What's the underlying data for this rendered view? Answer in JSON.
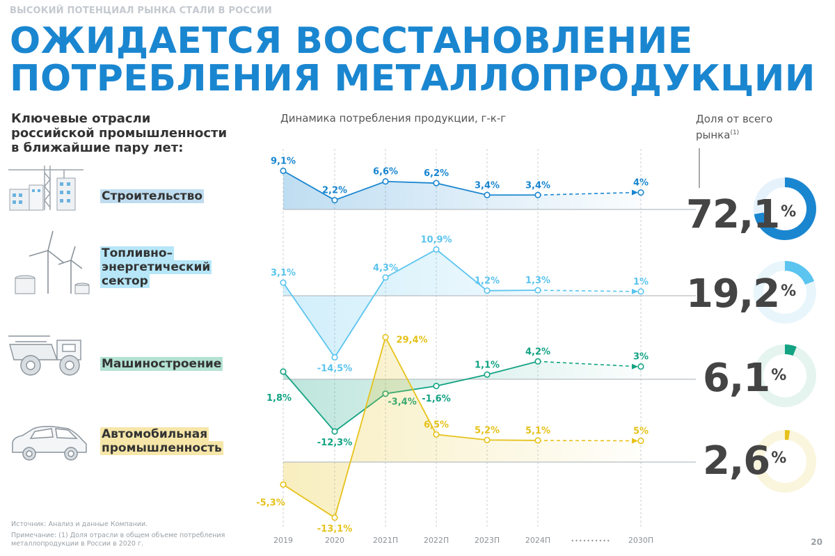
{
  "header": {
    "kicker": "ВЫСОКИЙ ПОТЕНЦИАЛ РЫНКА СТАЛИ В РОССИИ",
    "title_line1": "ОЖИДАЕТСЯ ВОССТАНОВЛЕНИЕ",
    "title_line2": "ПОТРЕБЛЕНИЯ МЕТАЛЛОПРОДУКЦИИ"
  },
  "left_heading": [
    "Ключевые отрасли",
    "российской промышленности",
    "в ближайшие пару лет:"
  ],
  "chart_heading": "Динамика потребления продукции, г-к-г",
  "share_heading": {
    "line1": "Доля от всего",
    "line2": "рынка",
    "note": "(1)"
  },
  "sectors": [
    {
      "label_lines": [
        "Строительство"
      ],
      "share": "72,1",
      "share_pct": "%",
      "color": "#1a86d0",
      "label_bg": "#bfdcef",
      "ring_bg": "#e6f2fb",
      "icon": "construction-icon"
    },
    {
      "label_lines": [
        "Топливно–",
        "энергетический",
        "сектор"
      ],
      "share": "19,2",
      "share_pct": "%",
      "color": "#5bc4ef",
      "label_bg": "#b6e6f7",
      "ring_bg": "#e8f6fc",
      "icon": "wind-turbine-icon"
    },
    {
      "label_lines": [
        "Машиностроение"
      ],
      "share": "6,1",
      "share_pct": "%",
      "color": "#13a383",
      "label_bg": "#b3e2d2",
      "ring_bg": "#e5f4ee",
      "icon": "dump-truck-icon"
    },
    {
      "label_lines": [
        "Автомобильная",
        "промышленность"
      ],
      "share": "2,6",
      "share_pct": "%",
      "color": "#e6c21a",
      "label_bg": "#f6e6a8",
      "ring_bg": "#faf5dd",
      "icon": "car-icon"
    }
  ],
  "chart_data": {
    "type": "line",
    "x": [
      "2019",
      "2020",
      "2021П",
      "2022П",
      "2023П",
      "2024П",
      "2030П"
    ],
    "xlabel": "",
    "ylabel": "Динамика потребления продукции, г-к-г",
    "unit": "%",
    "series": [
      {
        "name": "Строительство",
        "values": [
          9.1,
          2.2,
          6.6,
          6.2,
          3.4,
          3.4,
          4
        ],
        "labels": [
          "9,1%",
          "2,2%",
          "6,6%",
          "6,2%",
          "3,4%",
          "3,4%",
          "4%"
        ],
        "market_share": 72.1
      },
      {
        "name": "Топливно–энергетический сектор",
        "values": [
          3.1,
          -14.5,
          4.3,
          10.9,
          1.2,
          1.3,
          1
        ],
        "labels": [
          "3,1%",
          "-14,5%",
          "4,3%",
          "10,9%",
          "1,2%",
          "1,3%",
          "1%"
        ],
        "market_share": 19.2
      },
      {
        "name": "Машиностроение",
        "values": [
          1.8,
          -12.3,
          -3.4,
          -1.6,
          1.1,
          4.2,
          3
        ],
        "labels": [
          "1,8%",
          "-12,3%",
          "-3,4%",
          "-1,6%",
          "1,1%",
          "4,2%",
          "3%"
        ],
        "market_share": 6.1
      },
      {
        "name": "Автомобильная промышленность",
        "values": [
          -5.3,
          -13.1,
          29.4,
          6.5,
          5.2,
          5.1,
          5
        ],
        "labels": [
          "-5,3%",
          "-13,1%",
          "29,4%",
          "6,5%",
          "5,2%",
          "5,1%",
          "5%"
        ],
        "market_share": 2.6
      }
    ],
    "projection_gap": "••••••••••",
    "grid": true
  },
  "footnote": {
    "source": "Источник: Анализ и данные Компании.",
    "note": "Примечание: (1) Доля отрасли в общем объеме потребления металлопродукции в России в 2020 г."
  },
  "page_number": "20"
}
